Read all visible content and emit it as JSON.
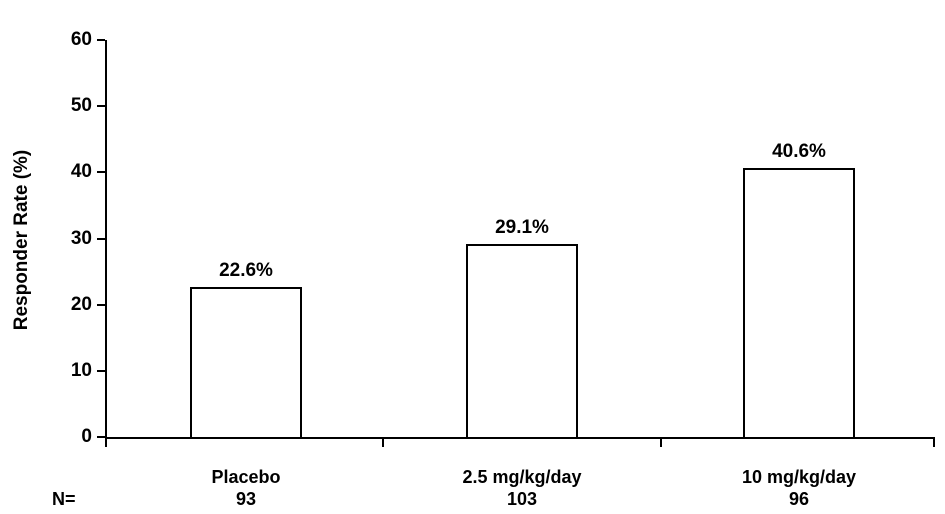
{
  "chart_data": {
    "type": "bar",
    "title": "",
    "ylabel": "Responder Rate (%)",
    "xlabel": "",
    "ylim": [
      0,
      60
    ],
    "yticks": [
      0,
      10,
      20,
      30,
      40,
      50,
      60
    ],
    "grid": false,
    "legend": "none",
    "background": "#ffffff",
    "bar_fill": "#ffffff",
    "bar_border": "#000000",
    "categories": [
      "Placebo",
      "2.5 mg/kg/day",
      "10 mg/kg/day"
    ],
    "values": [
      22.6,
      29.1,
      40.6
    ],
    "value_labels": [
      "22.6%",
      "29.1%",
      "40.6%"
    ],
    "n_label": "N=",
    "n_values": [
      "93",
      "103",
      "96"
    ]
  }
}
